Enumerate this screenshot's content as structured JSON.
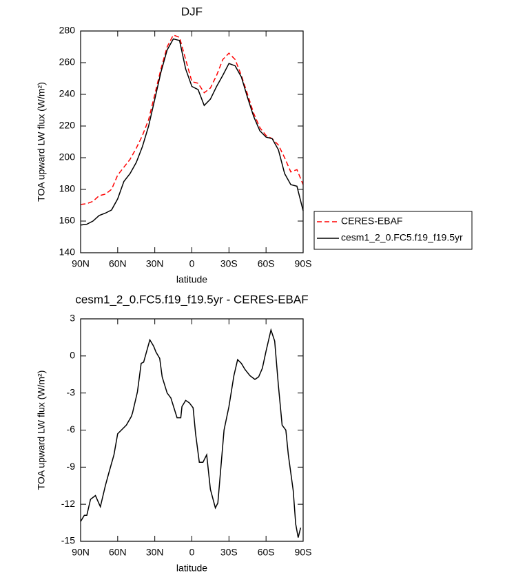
{
  "chart_data": [
    {
      "type": "line",
      "title": "DJF",
      "xlabel": "latitude",
      "ylabel": "TOA upward LW flux (W/m²)",
      "x": [
        90,
        85,
        80,
        75,
        70,
        65,
        60,
        55,
        50,
        45,
        40,
        35,
        30,
        25,
        20,
        15,
        10,
        5,
        0,
        -5,
        -10,
        -15,
        -20,
        -25,
        -30,
        -35,
        -40,
        -45,
        -50,
        -55,
        -60,
        -65,
        -70,
        -75,
        -80,
        -85,
        -90
      ],
      "series": [
        {
          "name": "CERES-EBAF",
          "color": "#ff0000",
          "linestyle": "dashed",
          "values": [
            170.5,
            171,
            172.5,
            176,
            177,
            180,
            189,
            194,
            199,
            206,
            214,
            224,
            240,
            256,
            270,
            277.5,
            276,
            262,
            248,
            247,
            241,
            244,
            252,
            262,
            266,
            262,
            252,
            240,
            228,
            219,
            214,
            212,
            208,
            200,
            191,
            192.5,
            183
          ]
        },
        {
          "name": "cesm1_2_0.FC5.f19_f19.5yr",
          "color": "#000000",
          "linestyle": "solid",
          "values": [
            157.5,
            158,
            160,
            163.5,
            165,
            167,
            174,
            185,
            190,
            197,
            207,
            220,
            237,
            254,
            268,
            275,
            274,
            256,
            245,
            243,
            233,
            237,
            245,
            252,
            259.5,
            258,
            251,
            238,
            226,
            217,
            213,
            212,
            205,
            190,
            183,
            182,
            166.5
          ]
        }
      ],
      "xlim": [
        90,
        -90
      ],
      "xticks": [
        {
          "value": 90,
          "label": "90N"
        },
        {
          "value": 60,
          "label": "60N"
        },
        {
          "value": 30,
          "label": "30N"
        },
        0,
        {
          "value": -30,
          "label": "30S"
        },
        {
          "value": -60,
          "label": "60S"
        },
        {
          "value": -90,
          "label": "90S"
        }
      ],
      "ylim": [
        140,
        280
      ],
      "yticks": [
        140,
        160,
        180,
        200,
        220,
        240,
        260,
        280
      ]
    },
    {
      "type": "line",
      "title": "cesm1_2_0.FC5.f19_f19.5yr - CERES-EBAF",
      "xlabel": "latitude",
      "ylabel": "TOA upward LW flux (W/m²)",
      "x": [
        90,
        87,
        85,
        82,
        78,
        74,
        70,
        67,
        63,
        60,
        57,
        53,
        49,
        48,
        44,
        41,
        39,
        34,
        31,
        29,
        26,
        24,
        20,
        17,
        12,
        9,
        8,
        5,
        2,
        -1,
        -3,
        -6,
        -9,
        -12,
        -15,
        -19,
        -21,
        -26,
        -30,
        -34,
        -37,
        -40,
        -43,
        -47,
        -51,
        -54,
        -57,
        -60,
        -64,
        -67,
        -70,
        -73,
        -76,
        -78,
        -82,
        -84,
        -86,
        -88
      ],
      "series": [
        {
          "name": "cesm1_2_0.FC5.f19_f19.5yr - CERES-EBAF",
          "color": "#000000",
          "linestyle": "solid",
          "values": [
            -13.4,
            -12.9,
            -12.9,
            -11.6,
            -11.3,
            -12.2,
            -10.5,
            -9.4,
            -8,
            -6.3,
            -6,
            -5.6,
            -4.9,
            -4.6,
            -2.9,
            -0.6,
            -0.5,
            1.3,
            0.8,
            0.3,
            -0.2,
            -1.7,
            -3,
            -3.4,
            -5,
            -5,
            -4.1,
            -3.6,
            -3.8,
            -4.2,
            -6.3,
            -8.6,
            -8.6,
            -8,
            -10.8,
            -12.3,
            -11.9,
            -6,
            -4.1,
            -1.6,
            -0.3,
            -0.6,
            -1.1,
            -1.6,
            -1.9,
            -1.7,
            -1,
            0.4,
            2.1,
            1.2,
            -2.4,
            -5.6,
            -6,
            -8,
            -10.9,
            -13.6,
            -14.7,
            -13.9
          ]
        }
      ],
      "xlim": [
        90,
        -90
      ],
      "xticks": [
        {
          "value": 90,
          "label": "90N"
        },
        {
          "value": 60,
          "label": "60N"
        },
        {
          "value": 30,
          "label": "30N"
        },
        0,
        {
          "value": -30,
          "label": "30S"
        },
        {
          "value": -60,
          "label": "60S"
        },
        {
          "value": -90,
          "label": "90S"
        }
      ],
      "ylim": [
        -15,
        3
      ],
      "yticks": [
        -15,
        -12,
        -9,
        -6,
        -3,
        0,
        3
      ]
    }
  ]
}
